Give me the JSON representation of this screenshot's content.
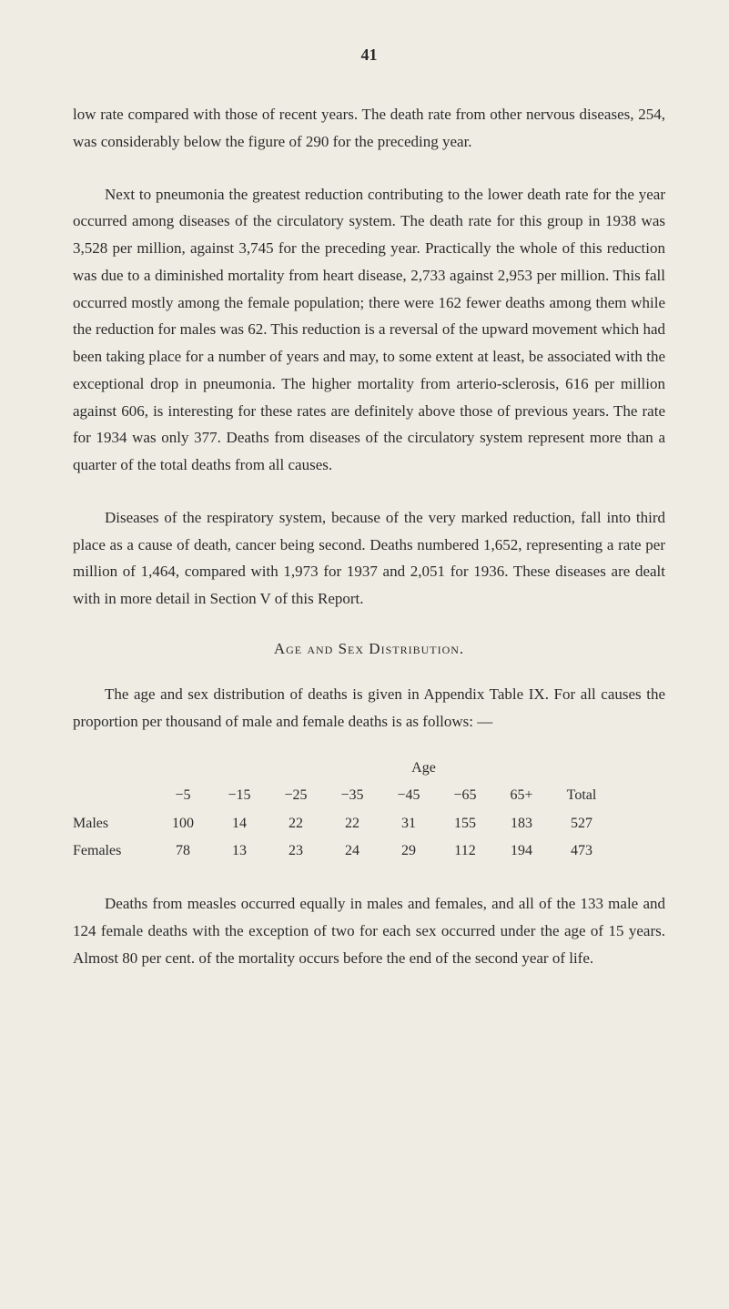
{
  "page_number": "41",
  "paragraphs": {
    "p1": "low rate compared with those of recent years. The death rate from other nervous diseases, 254, was considerably below the figure of 290 for the preceding year.",
    "p2": "Next to pneumonia the greatest reduction contributing to the lower death rate for the year occurred among diseases of the circulatory system. The death rate for this group in 1938 was 3,528 per million, against 3,745 for the preceding year. Practically the whole of this reduction was due to a diminished mortality from heart disease, 2,733 against 2,953 per million. This fall occurred mostly among the female population; there were 162 fewer deaths among them while the reduction for males was 62. This reduction is a reversal of the upward movement which had been taking place for a number of years and may, to some extent at least, be associated with the exceptional drop in pneumonia. The higher mortality from arterio-sclerosis, 616 per million against 606, is interesting for these rates are definitely above those of previous years. The rate for 1934 was only 377. Deaths from diseases of the circulatory system represent more than a quarter of the total deaths from all causes.",
    "p3": "Diseases of the respiratory system, because of the very marked reduction, fall into third place as a cause of death, cancer being second. Deaths numbered 1,652, representing a rate per million of 1,464, compared with 1,973 for 1937 and 2,051 for 1936. These diseases are dealt with in more detail in Section V of this Report.",
    "p4": "The age and sex distribution of deaths is given in Appendix Table IX. For all causes the proportion per thousand of male and female deaths is as follows: —",
    "p5": "Deaths from measles occurred equally in males and females, and all of the 133 male and 124 female deaths with the exception of two for each sex occurred under the age of 15 years. Almost 80 per cent. of the mortality occurs before the end of the second year of life."
  },
  "section_heading": "Age and Sex Distribution.",
  "table": {
    "age_label": "Age",
    "headers": {
      "col1": "−5",
      "col2": "−15",
      "col3": "−25",
      "col4": "−35",
      "col5": "−45",
      "col6": "−65",
      "col7": "65+",
      "col8": "Total"
    },
    "rows": {
      "males": {
        "label": "Males",
        "col1": "100",
        "col2": "14",
        "col3": "22",
        "col4": "22",
        "col5": "31",
        "col6": "155",
        "col7": "183",
        "col8": "527"
      },
      "females": {
        "label": "Females",
        "col1": "78",
        "col2": "13",
        "col3": "23",
        "col4": "24",
        "col5": "29",
        "col6": "112",
        "col7": "194",
        "col8": "473"
      }
    }
  },
  "colors": {
    "background": "#efede3",
    "text": "#2a2a2a"
  }
}
